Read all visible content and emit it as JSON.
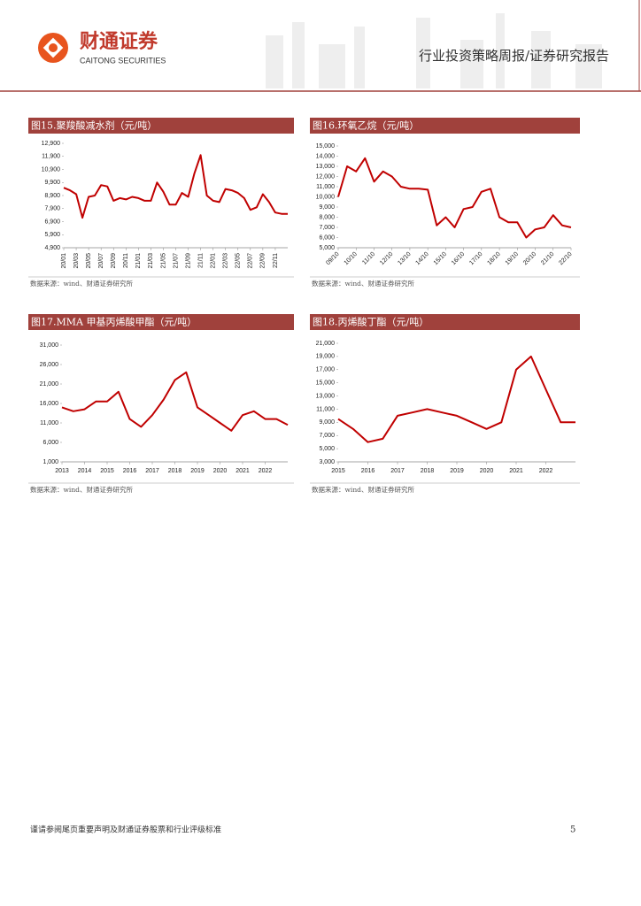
{
  "header": {
    "logo_text": "财通证券",
    "logo_sub": "CAITONG SECURITIES",
    "report_type": "行业投资策略周报/证券研究报告"
  },
  "footer": {
    "disclaimer": "谨请参阅尾页重要声明及财通证券股票和行业评级标准",
    "page": "5"
  },
  "chart_data": [
    {
      "type": "line",
      "title": "图15.聚羧酸减水剂（元/吨）",
      "source": "数据来源：wind、财通证券研究所",
      "color": "#c00000",
      "categories": [
        "20/01",
        null,
        "20/03",
        null,
        "20/05",
        null,
        "20/07",
        null,
        "20/09",
        null,
        "20/11",
        null,
        "21/01",
        null,
        "21/03",
        null,
        "21/05",
        null,
        "21/07",
        null,
        "21/09",
        null,
        "21/11",
        null,
        "22/01",
        null,
        "22/03",
        null,
        "22/05",
        null,
        "22/07",
        null,
        "22/09",
        null,
        "22/11",
        null,
        null
      ],
      "values": [
        9500,
        9300,
        9000,
        7200,
        8800,
        8900,
        9700,
        9600,
        8500,
        8700,
        8600,
        8800,
        8700,
        8500,
        8500,
        9900,
        9200,
        8200,
        8200,
        9100,
        8800,
        10600,
        12000,
        8900,
        8500,
        8400,
        9400,
        9300,
        9100,
        8700,
        7800,
        8000,
        9000,
        8400,
        7600,
        7500,
        7500
      ],
      "ylim": [
        4900,
        12900
      ],
      "yticks": [
        {
          "value": 4900,
          "label": "4,900"
        },
        {
          "value": 5900,
          "label": "5,900"
        },
        {
          "value": 6900,
          "label": "6,900"
        },
        {
          "value": 7900,
          "label": "7,900"
        },
        {
          "value": 8900,
          "label": "8,900"
        },
        {
          "value": 9900,
          "label": "9,900"
        },
        {
          "value": 10900,
          "label": "10,900"
        },
        {
          "value": 11900,
          "label": "11,900"
        },
        {
          "value": 12900,
          "label": "12,900"
        }
      ]
    },
    {
      "type": "line",
      "title": "图16.环氧乙烷（元/吨）",
      "source": "数据来源：wind、财通证券研究所",
      "color": "#c00000",
      "categories": [
        "09/10",
        null,
        "10/10",
        null,
        "11/10",
        null,
        "12/10",
        null,
        "13/10",
        null,
        "14/10",
        null,
        "15/10",
        null,
        "16/10",
        null,
        "17/10",
        null,
        "18/10",
        null,
        "19/10",
        null,
        "20/10",
        null,
        "21/10",
        null,
        "22/10"
      ],
      "values": [
        10000,
        13000,
        12500,
        13800,
        11500,
        12500,
        12000,
        11000,
        10800,
        10800,
        10700,
        7200,
        8000,
        7000,
        8800,
        9000,
        10500,
        10800,
        8000,
        7500,
        7500,
        6000,
        6800,
        7000,
        8200,
        7200,
        7000
      ],
      "ylim": [
        5000,
        15000
      ],
      "yticks": [
        {
          "value": 5000,
          "label": "5,000"
        },
        {
          "value": 6000,
          "label": "6,000"
        },
        {
          "value": 7000,
          "label": "7,000"
        },
        {
          "value": 8000,
          "label": "8,000"
        },
        {
          "value": 9000,
          "label": "9,000"
        },
        {
          "value": 10000,
          "label": "10,000"
        },
        {
          "value": 11000,
          "label": "11,000"
        },
        {
          "value": 12000,
          "label": "12,000"
        },
        {
          "value": 13000,
          "label": "13,000"
        },
        {
          "value": 14000,
          "label": "14,000"
        },
        {
          "value": 15000,
          "label": "15,000"
        }
      ]
    },
    {
      "type": "line",
      "title": "图17.MMA 甲基丙烯酸甲酯（元/吨）",
      "source": "数据来源：wind、财通证券研究所",
      "color": "#c00000",
      "categories": [
        "2013",
        null,
        "2014",
        null,
        "2015",
        null,
        "2016",
        null,
        "2017",
        null,
        "2018",
        null,
        "2019",
        null,
        "2020",
        null,
        "2021",
        null,
        "2022",
        null,
        null
      ],
      "values": [
        15000,
        14000,
        14500,
        16500,
        16500,
        19000,
        12000,
        10000,
        13000,
        17000,
        22000,
        24000,
        15000,
        13000,
        11000,
        9000,
        13000,
        14000,
        12000,
        12000,
        10500
      ],
      "ylim": [
        1000,
        31000
      ],
      "yticks": [
        {
          "value": 1000,
          "label": "1,000"
        },
        {
          "value": 6000,
          "label": "6,000"
        },
        {
          "value": 11000,
          "label": "11,000"
        },
        {
          "value": 16000,
          "label": "16,000"
        },
        {
          "value": 21000,
          "label": "21,000"
        },
        {
          "value": 26000,
          "label": "26,000"
        },
        {
          "value": 31000,
          "label": "31,000"
        }
      ]
    },
    {
      "type": "line",
      "title": "图18.丙烯酸丁酯（元/吨）",
      "source": "数据来源：wind、财通证券研究所",
      "color": "#c00000",
      "categories": [
        "2015",
        null,
        "2016",
        null,
        "2017",
        null,
        "2018",
        null,
        "2019",
        null,
        "2020",
        null,
        "2021",
        null,
        "2022",
        null,
        null
      ],
      "values": [
        9500,
        8000,
        6000,
        6500,
        10000,
        10500,
        11000,
        10500,
        10000,
        9000,
        8000,
        9000,
        17000,
        19000,
        14000,
        9000,
        9000
      ],
      "ylim": [
        3000,
        21000
      ],
      "yticks": [
        {
          "value": 3000,
          "label": "3,000"
        },
        {
          "value": 5000,
          "label": "5,000"
        },
        {
          "value": 7000,
          "label": "7,000"
        },
        {
          "value": 9000,
          "label": "9,000"
        },
        {
          "value": 11000,
          "label": "11,000"
        },
        {
          "value": 13000,
          "label": "13,000"
        },
        {
          "value": 15000,
          "label": "15,000"
        },
        {
          "value": 17000,
          "label": "17,000"
        },
        {
          "value": 19000,
          "label": "19,000"
        },
        {
          "value": 21000,
          "label": "21,000"
        }
      ]
    }
  ]
}
